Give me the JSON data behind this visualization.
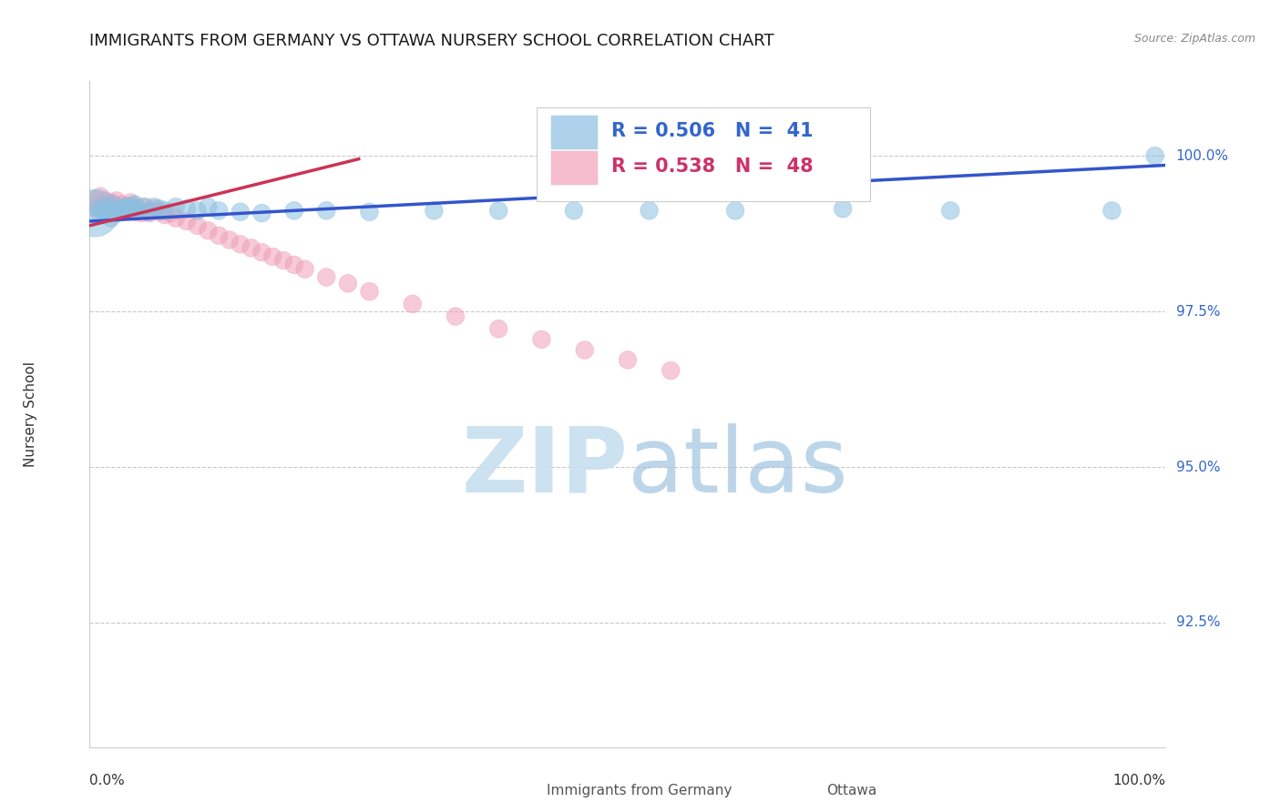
{
  "title": "IMMIGRANTS FROM GERMANY VS OTTAWA NURSERY SCHOOL CORRELATION CHART",
  "source": "Source: ZipAtlas.com",
  "ylabel": "Nursery School",
  "ytick_labels": [
    "100.0%",
    "97.5%",
    "95.0%",
    "92.5%"
  ],
  "ytick_values": [
    1.0,
    0.975,
    0.95,
    0.925
  ],
  "xlim": [
    0.0,
    1.0
  ],
  "ylim": [
    0.905,
    1.012
  ],
  "legend_blue_r": "R = 0.506",
  "legend_blue_n": "N =  41",
  "legend_pink_r": "R = 0.538",
  "legend_pink_n": "N =  48",
  "legend_blue_label": "Immigrants from Germany",
  "legend_pink_label": "Ottawa",
  "blue_color": "#8bbfe0",
  "pink_color": "#f0a0b8",
  "blue_line_color": "#3355cc",
  "pink_line_color": "#cc3355",
  "blue_x": [
    0.005,
    0.008,
    0.01,
    0.012,
    0.015,
    0.018,
    0.02,
    0.022,
    0.025,
    0.028,
    0.03,
    0.032,
    0.035,
    0.038,
    0.04,
    0.042,
    0.045,
    0.05,
    0.055,
    0.06,
    0.065,
    0.07,
    0.08,
    0.09,
    0.1,
    0.11,
    0.12,
    0.14,
    0.16,
    0.19,
    0.22,
    0.26,
    0.32,
    0.38,
    0.45,
    0.52,
    0.6,
    0.7,
    0.8,
    0.95,
    0.99
  ],
  "blue_y": [
    0.9908,
    0.9915,
    0.9905,
    0.9912,
    0.9918,
    0.991,
    0.99,
    0.9922,
    0.9908,
    0.9912,
    0.9915,
    0.9918,
    0.9912,
    0.992,
    0.9915,
    0.9922,
    0.9912,
    0.9918,
    0.991,
    0.9918,
    0.9915,
    0.9912,
    0.9918,
    0.9915,
    0.9912,
    0.9918,
    0.9912,
    0.991,
    0.9908,
    0.9912,
    0.9912,
    0.991,
    0.9912,
    0.9912,
    0.9912,
    0.9912,
    0.9912,
    0.9915,
    0.9912,
    0.9912,
    1.0
  ],
  "blue_sizes": [
    200,
    200,
    200,
    200,
    200,
    200,
    200,
    200,
    200,
    200,
    200,
    200,
    200,
    200,
    200,
    200,
    200,
    200,
    200,
    200,
    200,
    200,
    200,
    200,
    200,
    200,
    200,
    200,
    200,
    200,
    200,
    200,
    200,
    200,
    200,
    200,
    200,
    200,
    200,
    200,
    200
  ],
  "blue_big_idx": 0,
  "blue_big_size": 1400,
  "pink_x": [
    0.003,
    0.005,
    0.008,
    0.01,
    0.012,
    0.015,
    0.018,
    0.02,
    0.022,
    0.025,
    0.028,
    0.03,
    0.032,
    0.035,
    0.038,
    0.04,
    0.042,
    0.045,
    0.048,
    0.052,
    0.056,
    0.06,
    0.065,
    0.07,
    0.075,
    0.08,
    0.09,
    0.1,
    0.11,
    0.12,
    0.13,
    0.14,
    0.15,
    0.16,
    0.17,
    0.18,
    0.19,
    0.2,
    0.22,
    0.24,
    0.26,
    0.3,
    0.34,
    0.38,
    0.42,
    0.46,
    0.5,
    0.54
  ],
  "pink_y": [
    0.9918,
    0.993,
    0.992,
    0.9935,
    0.9918,
    0.9928,
    0.992,
    0.9925,
    0.991,
    0.9928,
    0.9915,
    0.9922,
    0.991,
    0.9918,
    0.9925,
    0.992,
    0.991,
    0.9915,
    0.9908,
    0.9918,
    0.9908,
    0.9915,
    0.991,
    0.9905,
    0.9908,
    0.99,
    0.9895,
    0.9888,
    0.988,
    0.9872,
    0.9865,
    0.9858,
    0.9852,
    0.9845,
    0.9838,
    0.9832,
    0.9825,
    0.9818,
    0.9805,
    0.9795,
    0.9782,
    0.9762,
    0.9742,
    0.9722,
    0.9705,
    0.9688,
    0.9672,
    0.9655
  ],
  "pink_sizes": [
    200,
    200,
    200,
    200,
    200,
    200,
    200,
    200,
    200,
    200,
    200,
    200,
    200,
    200,
    200,
    200,
    200,
    200,
    200,
    200,
    200,
    200,
    200,
    200,
    200,
    200,
    200,
    200,
    200,
    200,
    200,
    200,
    200,
    200,
    200,
    200,
    200,
    200,
    200,
    200,
    200,
    200,
    200,
    200,
    200,
    200,
    200,
    200
  ],
  "blue_line_x": [
    0.0,
    1.0
  ],
  "blue_line_y": [
    0.9895,
    0.9985
  ],
  "pink_line_x": [
    0.0,
    0.25
  ],
  "pink_line_y": [
    0.9888,
    0.9995
  ],
  "grid_color": "#bbbbbb",
  "grid_style": "--",
  "watermark_zip_color": "#c8dff0",
  "watermark_atlas_color": "#a0c4e0"
}
